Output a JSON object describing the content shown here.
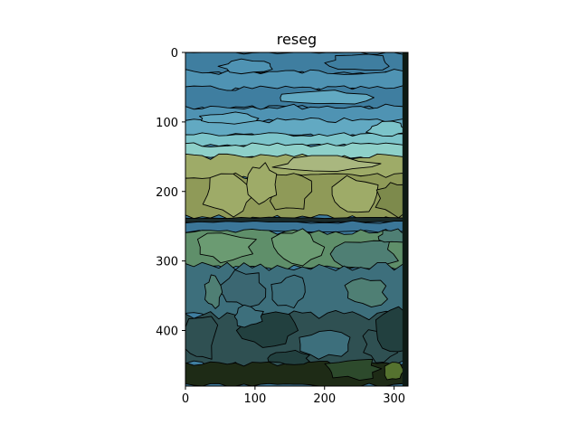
{
  "figure": {
    "title": "reseg"
  },
  "chart_data": {
    "type": "image",
    "title": "reseg",
    "xlim": [
      0,
      320
    ],
    "ylim": [
      480,
      0
    ],
    "x_ticks": [
      0,
      100,
      200,
      300
    ],
    "y_ticks": [
      0,
      100,
      200,
      300,
      400
    ],
    "x_tick_labels": [
      "0",
      "100",
      "200",
      "300"
    ],
    "y_tick_labels": [
      "0",
      "100",
      "200",
      "300",
      "400"
    ],
    "grid": false,
    "palette": {
      "sky_dark": "#3f7ea0",
      "sky_mid": "#4f93b3",
      "sky_light": "#62a9c2",
      "sky_teal": "#7cc4ca",
      "sky_pale": "#8ed0c9",
      "field_khaki": "#9eab68",
      "field_light": "#a9b77f",
      "field_olive": "#8f9a58",
      "field_dark": "#7d8a4c",
      "water_blue": "#3b7698",
      "lawn_green": "#5f8f6a",
      "lawn_light": "#6b9b72",
      "lawn_teal": "#4f7f74",
      "shrub_teal": "#3d6f7c",
      "shrub_slate": "#3b6772",
      "shrub_dark": "#2f5052",
      "shrub_deep": "#22403f",
      "ground_dark": "#1e2b16",
      "ground_green": "#2d4a2c",
      "moss": "#55722f"
    }
  }
}
